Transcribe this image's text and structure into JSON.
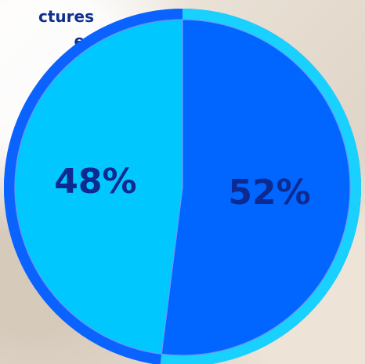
{
  "visible_text": {
    "line1": "ctures",
    "line2": "es"
  },
  "chart_data": {
    "type": "pie",
    "slices": [
      {
        "value": 52,
        "label": "52%",
        "color": "#0066ff"
      },
      {
        "value": 48,
        "label": "48%",
        "color": "#00c8ff"
      }
    ],
    "ring_color": "#0b63ff",
    "accent_ring_color": "#19d1ff"
  }
}
